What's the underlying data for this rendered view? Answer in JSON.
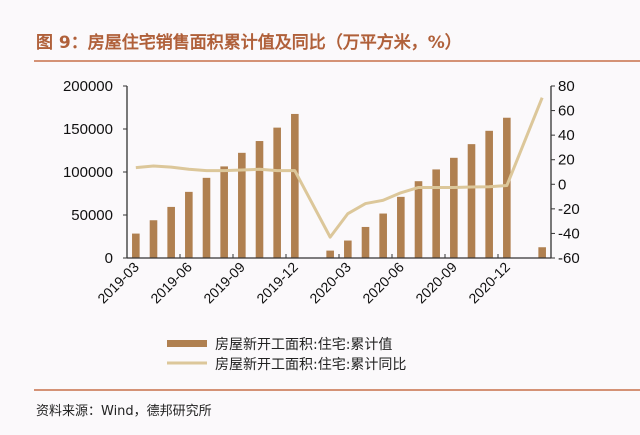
{
  "title": "图 9：房屋住宅销售面积累计值及同比（万平方米，%）",
  "source": "资料来源：Wind，德邦研究所",
  "colors": {
    "title": "#b0603a",
    "rule": "#c8704a",
    "bar": "#b08050",
    "line": "#dcc79a"
  },
  "chart_data": {
    "type": "bar+line",
    "categories": [
      "2019-03",
      "2019-04",
      "2019-05",
      "2019-06",
      "2019-07",
      "2019-08",
      "2019-09",
      "2019-10",
      "2019-11",
      "2019-12",
      "2020-01",
      "2020-02",
      "2020-03",
      "2020-04",
      "2020-05",
      "2020-06",
      "2020-07",
      "2020-08",
      "2020-09",
      "2020-10",
      "2020-11",
      "2020-12",
      "2021-01",
      "2021-02"
    ],
    "x_tick_labels": [
      "2019-03",
      "2019-06",
      "2019-09",
      "2019-12",
      "2020-03",
      "2020-06",
      "2020-09",
      "2020-12"
    ],
    "series": [
      {
        "name": "房屋新开工面积:住宅:累计值",
        "type": "bar",
        "axis": "left",
        "values": [
          28400,
          43900,
          59400,
          76900,
          93200,
          106500,
          122300,
          136000,
          151600,
          167500,
          null,
          8600,
          20300,
          36100,
          51700,
          71100,
          89300,
          103000,
          116500,
          132400,
          147900,
          163100,
          null,
          12500
        ]
      },
      {
        "name": "房屋新开工面积:住宅:累计同比",
        "type": "line",
        "axis": "right",
        "values": [
          13.6,
          14.9,
          14.0,
          12.2,
          11.1,
          11.1,
          11.6,
          12.2,
          11.1,
          11.1,
          null,
          -43,
          -23.9,
          -15.7,
          -13,
          -6.9,
          -2.6,
          -2.6,
          -2.6,
          -2.2,
          -2.0,
          -1.0,
          null,
          70.5
        ]
      }
    ],
    "y_left": {
      "lim": [
        0,
        200000
      ],
      "ticks": [
        "0",
        "50000",
        "100000",
        "150000",
        "200000"
      ]
    },
    "y_right": {
      "lim": [
        -60,
        80
      ],
      "ticks": [
        "-60",
        "-40",
        "-20",
        "0",
        "20",
        "40",
        "60",
        "80"
      ]
    },
    "grid": false,
    "legend_position": "bottom"
  }
}
